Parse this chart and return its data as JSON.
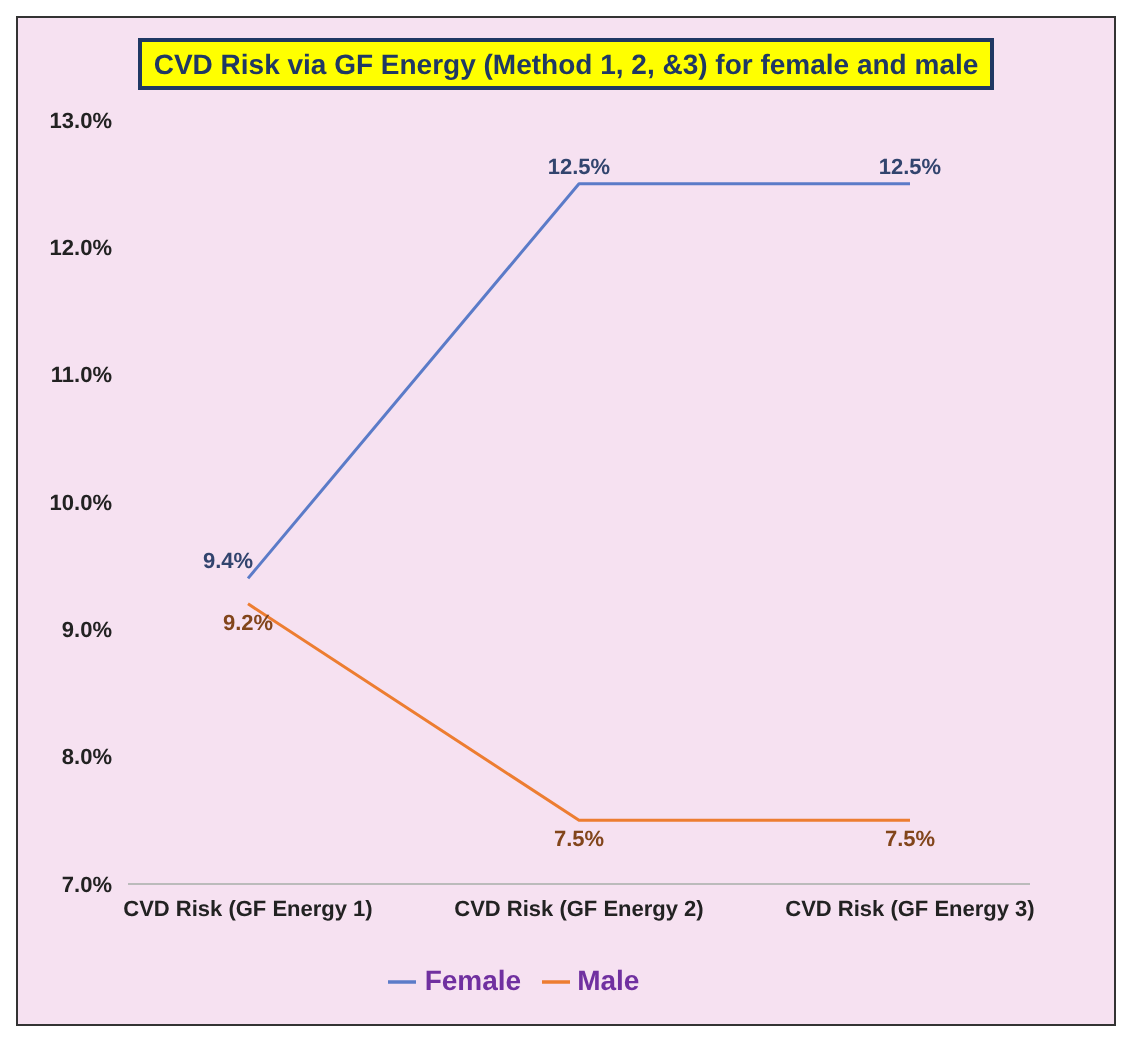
{
  "chart_data": {
    "type": "line",
    "title": "CVD Risk via GF Energy (Method 1, 2, &3) for female and male",
    "categories": [
      "CVD Risk (GF Energy 1)",
      "CVD Risk (GF Energy 2)",
      "CVD Risk (GF Energy 3)"
    ],
    "series": [
      {
        "name": "Female",
        "color": "#5b7bc8",
        "values": [
          9.4,
          12.5,
          12.5
        ],
        "value_labels": [
          "9.4%",
          "12.5%",
          "12.5%"
        ]
      },
      {
        "name": "Male",
        "color": "#ed7d31",
        "values": [
          9.2,
          7.5,
          7.5
        ],
        "value_labels": [
          "9.2%",
          "7.5%",
          "7.5%"
        ]
      }
    ],
    "ylim": [
      7,
      13
    ],
    "yticks": [
      {
        "value": 7,
        "label": "7.0%"
      },
      {
        "value": 8,
        "label": "8.0%"
      },
      {
        "value": 9,
        "label": "9.0%"
      },
      {
        "value": 10,
        "label": "10.0%"
      },
      {
        "value": 11,
        "label": "11.0%"
      },
      {
        "value": 12,
        "label": "12.0%"
      },
      {
        "value": 13,
        "label": "13.0%"
      }
    ],
    "grid": false,
    "legend": "bottom",
    "marker": "none",
    "line_style": "solid"
  }
}
